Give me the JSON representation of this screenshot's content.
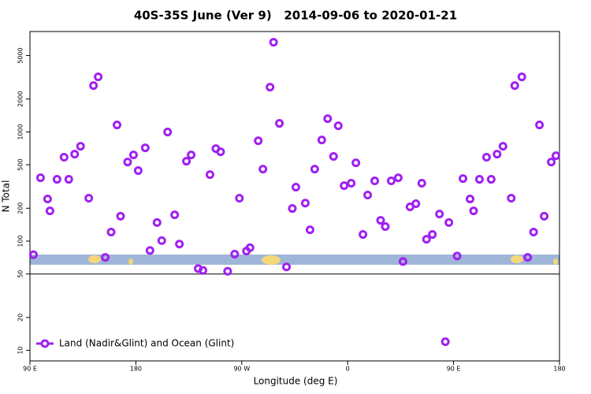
{
  "chart_data": {
    "type": "scatter",
    "title": "40S-35S June (Ver 9)   2014-09-06 to 2020-01-21",
    "x_label": "Longitude (deg E)",
    "y_label": "N Total",
    "x": [
      93,
      99,
      105,
      107,
      113,
      119,
      123,
      128,
      133,
      140,
      144,
      148,
      154,
      159,
      164,
      167,
      173,
      178,
      182,
      188,
      192,
      198,
      202,
      207,
      213,
      217,
      223,
      227,
      233,
      237,
      243,
      248,
      252,
      258,
      264,
      268,
      274,
      277,
      284,
      288,
      294,
      297,
      302,
      308,
      313,
      316,
      324,
      328,
      332,
      338,
      343,
      348,
      352,
      357,
      363,
      367,
      373,
      377,
      383,
      388,
      392,
      397,
      403,
      407,
      413,
      418,
      423,
      427,
      432,
      438,
      443,
      446,
      453,
      458,
      464,
      467,
      472,
      478,
      482,
      487,
      492,
      499,
      502,
      508,
      513,
      518,
      523,
      527,
      533,
      537
    ],
    "series": [
      {
        "name": "Land (Nadir&Glint) and Ocean (Glint)",
        "color": "#a020f0",
        "values": [
          75,
          380,
          243,
          189,
          368,
          586,
          368,
          626,
          739,
          247,
          2656,
          3190,
          71,
          121,
          1158,
          169,
          530,
          615,
          442,
          715,
          82,
          148,
          101,
          997,
          174,
          94,
          539,
          615,
          56,
          54,
          406,
          703,
          658,
          53,
          76,
          247,
          81,
          87,
          830,
          456,
          2570,
          6620,
          1197,
          58,
          199,
          312,
          223,
          127,
          456,
          844,
          1321,
          596,
          1138,
          322,
          339,
          521,
          115,
          264,
          356,
          155,
          136,
          356,
          380,
          65,
          206,
          220,
          339,
          104,
          115,
          177,
          12,
          148,
          73,
          374,
          243,
          189,
          368,
          586,
          368,
          626,
          739,
          247,
          2656,
          3190,
          71,
          121,
          1158,
          169,
          530,
          605
        ]
      }
    ],
    "xlim": [
      90,
      540
    ],
    "xticks": [
      {
        "value": 90,
        "label": "90 E"
      },
      180,
      {
        "value": 270,
        "label": "90 W"
      },
      {
        "value": 360,
        "label": "0"
      },
      {
        "value": 450,
        "label": "90 E"
      },
      {
        "value": 540,
        "label": "180"
      }
    ],
    "ylim": [
      8,
      8300
    ],
    "y_scale": "log",
    "yticks": [
      10,
      20,
      50,
      100,
      200,
      500,
      1000,
      2000,
      5000
    ],
    "hline": 50,
    "legend_position": "lower left",
    "grid": false
  }
}
